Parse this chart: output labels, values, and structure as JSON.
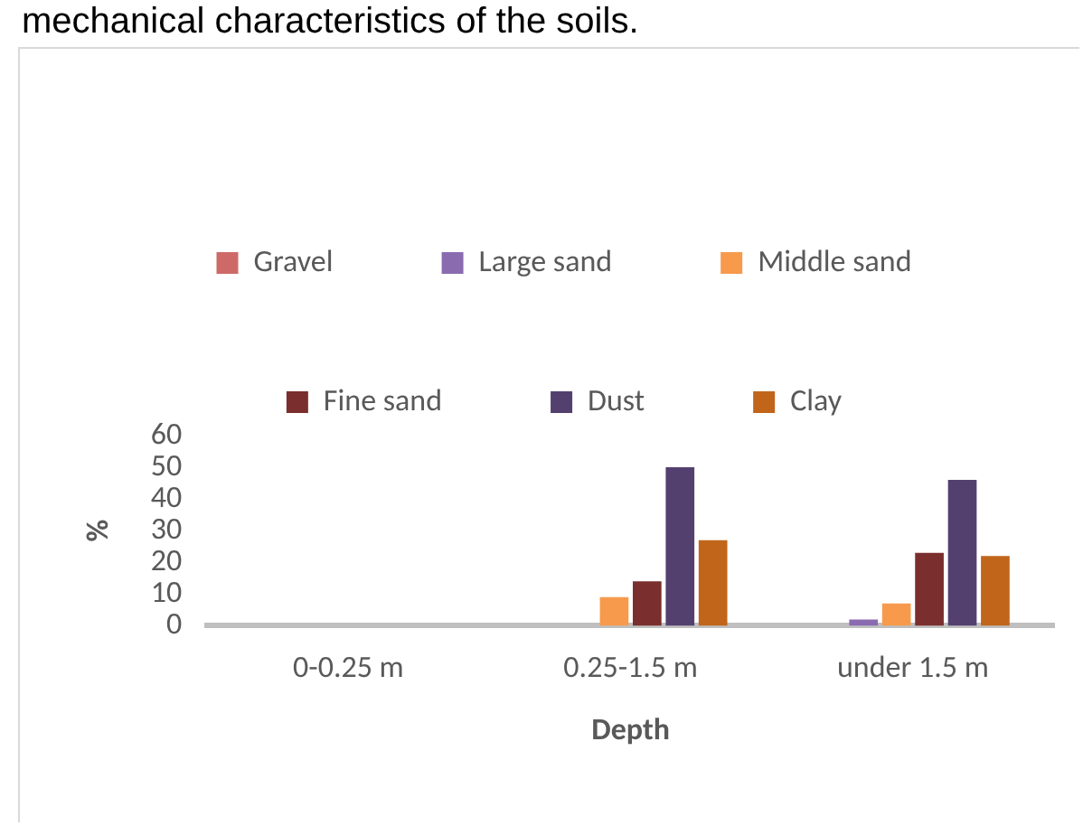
{
  "chart_data": {
    "type": "bar",
    "title": "mechanical characteristics of the soils.",
    "xlabel": "Depth",
    "ylabel": "%",
    "categories": [
      "0-0.25 m",
      "0.25-1.5 m",
      "under 1.5 m"
    ],
    "series": [
      {
        "name": "Gravel",
        "color": "#cd6a68",
        "values": [
          0,
          0,
          0
        ]
      },
      {
        "name": "Large sand",
        "color": "#8a6bb0",
        "values": [
          0,
          0,
          2
        ]
      },
      {
        "name": "Middle sand",
        "color": "#f79a4c",
        "values": [
          0,
          9,
          7
        ]
      },
      {
        "name": "Fine sand",
        "color": "#7b2e2e",
        "values": [
          0,
          14,
          23
        ]
      },
      {
        "name": "Dust",
        "color": "#53406f",
        "values": [
          0,
          50,
          46
        ]
      },
      {
        "name": "Clay",
        "color": "#c0651a",
        "values": [
          0,
          27,
          22
        ]
      }
    ],
    "ylim": [
      0,
      60
    ],
    "yticks": [
      0,
      10,
      20,
      30,
      40,
      50,
      60
    ],
    "grid": false,
    "legend": "top"
  }
}
